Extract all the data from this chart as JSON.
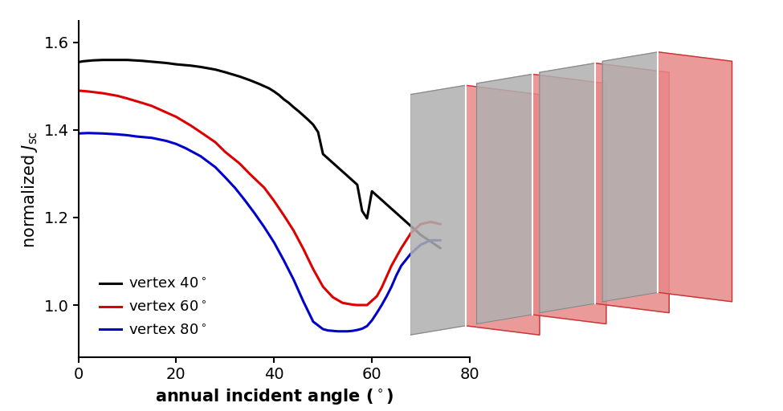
{
  "xlabel": "annual incident angle (°)",
  "xlim": [
    0,
    80
  ],
  "ylim": [
    0.88,
    1.65
  ],
  "xticks": [
    0,
    20,
    40,
    60,
    80
  ],
  "yticks": [
    1.0,
    1.2,
    1.4,
    1.6
  ],
  "background_color": "#ffffff",
  "black_x": [
    0,
    1,
    2,
    3,
    5,
    7,
    10,
    13,
    15,
    18,
    20,
    23,
    25,
    28,
    30,
    33,
    35,
    37,
    39,
    40,
    41,
    42,
    43,
    44,
    45,
    46,
    47,
    48,
    49,
    50,
    51,
    52,
    53,
    54,
    55,
    56,
    57,
    58,
    59,
    60,
    61,
    62,
    63,
    64,
    65,
    66,
    67,
    68,
    70,
    72,
    74
  ],
  "black_y": [
    1.555,
    1.557,
    1.558,
    1.559,
    1.56,
    1.56,
    1.56,
    1.558,
    1.556,
    1.553,
    1.55,
    1.547,
    1.544,
    1.538,
    1.532,
    1.522,
    1.514,
    1.505,
    1.495,
    1.488,
    1.48,
    1.47,
    1.462,
    1.452,
    1.443,
    1.433,
    1.423,
    1.412,
    1.395,
    1.345,
    1.335,
    1.325,
    1.315,
    1.305,
    1.295,
    1.285,
    1.275,
    1.215,
    1.198,
    1.26,
    1.25,
    1.24,
    1.23,
    1.22,
    1.21,
    1.2,
    1.19,
    1.18,
    1.16,
    1.145,
    1.13
  ],
  "red_x": [
    0,
    2,
    5,
    8,
    10,
    13,
    15,
    18,
    20,
    23,
    25,
    28,
    30,
    33,
    35,
    38,
    40,
    42,
    44,
    46,
    48,
    50,
    52,
    54,
    55,
    56,
    57,
    58,
    59,
    60,
    61,
    62,
    63,
    64,
    65,
    66,
    68,
    70,
    72,
    74
  ],
  "red_y": [
    1.49,
    1.488,
    1.484,
    1.478,
    1.472,
    1.462,
    1.455,
    1.44,
    1.43,
    1.41,
    1.395,
    1.372,
    1.35,
    1.323,
    1.3,
    1.268,
    1.238,
    1.205,
    1.17,
    1.128,
    1.082,
    1.042,
    1.018,
    1.005,
    1.003,
    1.001,
    1.0,
    1.0,
    1.0,
    1.01,
    1.02,
    1.04,
    1.065,
    1.09,
    1.11,
    1.13,
    1.165,
    1.185,
    1.19,
    1.185
  ],
  "blue_x": [
    0,
    2,
    5,
    8,
    10,
    12,
    15,
    18,
    20,
    22,
    25,
    28,
    30,
    32,
    34,
    36,
    38,
    40,
    42,
    44,
    46,
    48,
    50,
    51,
    52,
    53,
    54,
    55,
    56,
    57,
    58,
    59,
    60,
    61,
    62,
    63,
    64,
    65,
    66,
    68,
    70,
    72,
    74
  ],
  "blue_y": [
    1.392,
    1.393,
    1.392,
    1.39,
    1.388,
    1.385,
    1.382,
    1.375,
    1.368,
    1.358,
    1.34,
    1.315,
    1.292,
    1.268,
    1.24,
    1.21,
    1.178,
    1.143,
    1.102,
    1.058,
    1.008,
    0.962,
    0.945,
    0.942,
    0.941,
    0.94,
    0.94,
    0.94,
    0.941,
    0.943,
    0.946,
    0.952,
    0.965,
    0.982,
    1.0,
    1.02,
    1.042,
    1.068,
    1.09,
    1.118,
    1.138,
    1.148,
    1.148
  ],
  "line_colors": [
    "#000000",
    "#dd0000",
    "#0000cc"
  ],
  "line_width": 2.2,
  "legend_labels": [
    "vertex 40°",
    "vertex 60°",
    "vertex 80°"
  ],
  "legend_colors": [
    "#000000",
    "#dd0000",
    "#0000cc"
  ],
  "legend_fontsize": 13,
  "tick_labelsize": 14,
  "xlabel_fontsize": 15,
  "ylabel_fontsize": 15
}
